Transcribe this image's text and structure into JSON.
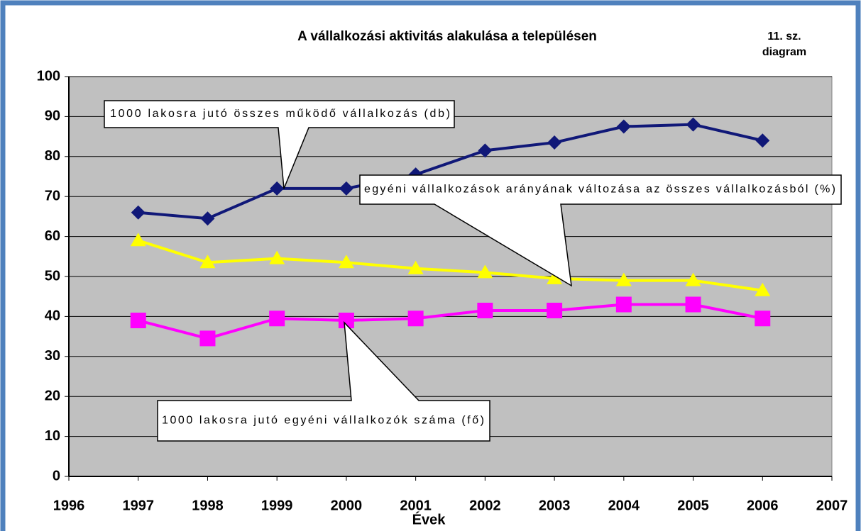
{
  "chart_data": {
    "type": "line",
    "title": "A vállalkozási aktivitás alakulása a településen",
    "note": [
      "11. sz.",
      "diagram"
    ],
    "x_label": "Évek",
    "x": [
      1997,
      1998,
      1999,
      2000,
      2001,
      2002,
      2003,
      2004,
      2005,
      2006
    ],
    "series": [
      {
        "name": "1000 lakosra jutó összes működő vállalkozás (db)",
        "color": "#101878",
        "marker": "diamond",
        "values": [
          66,
          64.5,
          72,
          72,
          75.5,
          81.5,
          83.5,
          87.5,
          88,
          84
        ]
      },
      {
        "name": "egyéni vállalkozások arányának változása az összes vállalkozásból (%)",
        "color": "#ffff00",
        "marker": "triangle",
        "values": [
          59,
          53.5,
          54.5,
          53.5,
          52,
          51,
          49.5,
          49,
          49,
          46.5
        ]
      },
      {
        "name": "1000 lakosra jutó egyéni vállalkozók száma (fő)",
        "color": "#ff00ff",
        "marker": "square",
        "values": [
          39,
          34.5,
          39.5,
          39,
          39.5,
          41.5,
          41.5,
          43,
          43,
          39.5
        ]
      }
    ],
    "xlim": [
      1996,
      2007
    ],
    "xticks": [
      1996,
      1997,
      1998,
      1999,
      2000,
      2001,
      2002,
      2003,
      2004,
      2005,
      2006,
      2007
    ],
    "ylim": [
      0,
      100
    ],
    "yticks": [
      0,
      10,
      20,
      30,
      40,
      50,
      60,
      70,
      80,
      90,
      100
    ],
    "grid": true
  }
}
